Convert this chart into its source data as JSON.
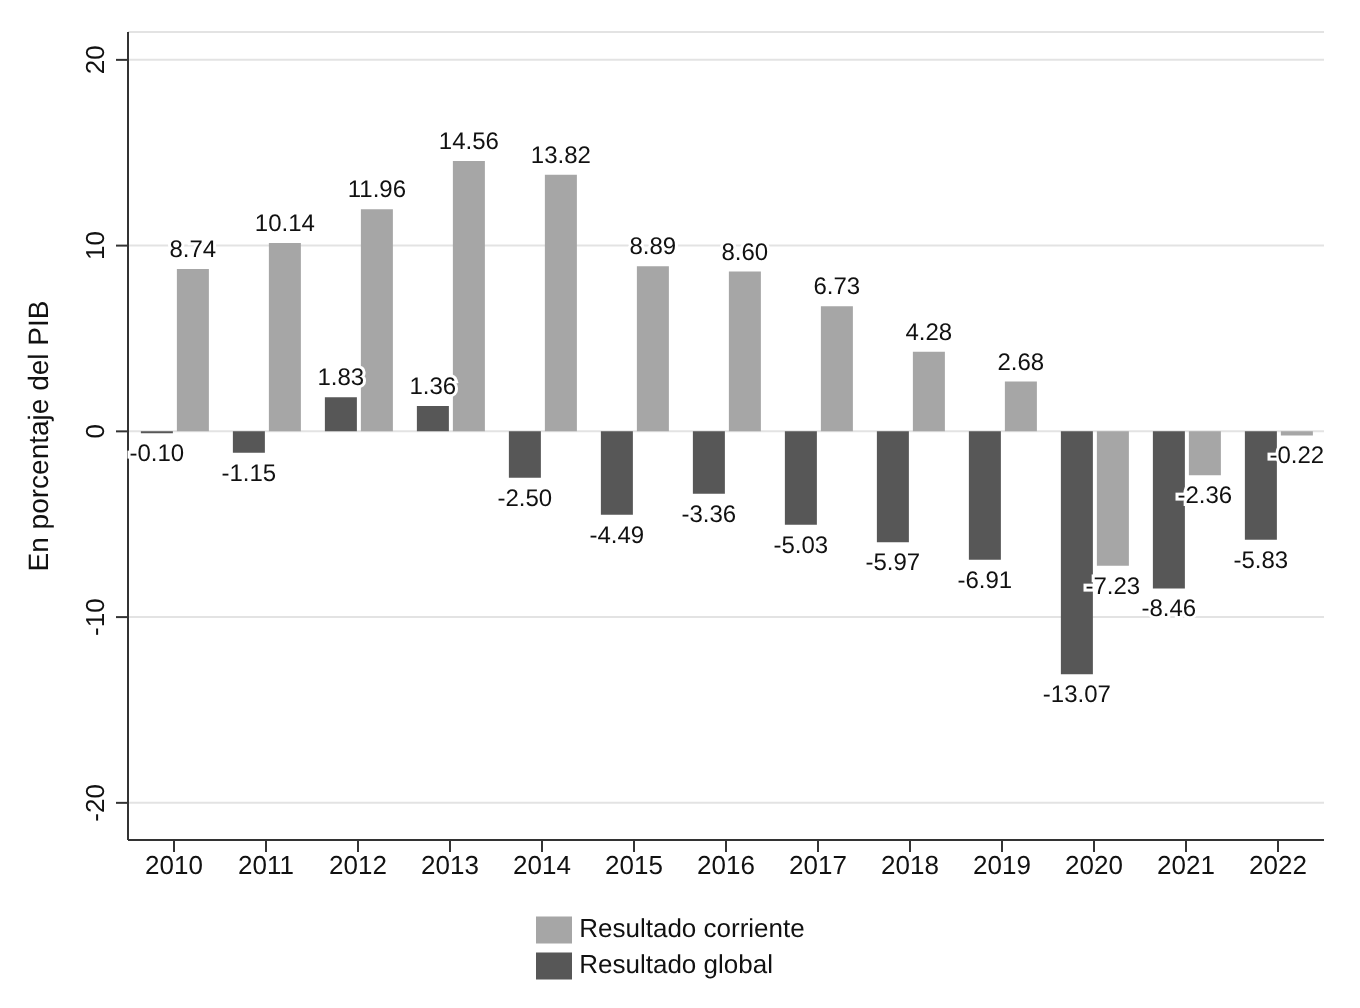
{
  "chart_data": {
    "type": "bar",
    "ylabel": "En porcentaje del PIB",
    "categories": [
      "2010",
      "2011",
      "2012",
      "2013",
      "2014",
      "2015",
      "2016",
      "2017",
      "2018",
      "2019",
      "2020",
      "2021",
      "2022"
    ],
    "series": [
      {
        "name": "Resultado global",
        "color": "#575757",
        "values": [
          -0.1,
          -1.15,
          1.83,
          1.36,
          -2.5,
          -4.49,
          -3.36,
          -5.03,
          -5.97,
          -6.91,
          -13.07,
          -8.46,
          -5.83
        ],
        "value_labels": [
          "-0.10",
          "-1.15",
          "1.83",
          "1.36",
          "-2.50",
          "-4.49",
          "-3.36",
          "-5.03",
          "-5.97",
          "-6.91",
          "-13.07",
          "-8.46",
          "-5.83"
        ]
      },
      {
        "name": "Resultado corriente",
        "color": "#a6a6a6",
        "values": [
          8.74,
          10.14,
          11.96,
          14.56,
          13.82,
          8.89,
          8.6,
          6.73,
          4.28,
          2.68,
          -7.23,
          -2.36,
          -0.22
        ],
        "value_labels": [
          "8.74",
          "10.14",
          "11.96",
          "14.56",
          "13.82",
          "8.89",
          "8.60",
          "6.73",
          "4.28",
          "2.68",
          "-7.23",
          "-2.36",
          "-0.22"
        ]
      }
    ],
    "ylim": [
      -22,
      21.5
    ],
    "yticks": [
      -20,
      -10,
      0,
      10,
      20
    ],
    "grid": "y",
    "legend": "bottom"
  }
}
